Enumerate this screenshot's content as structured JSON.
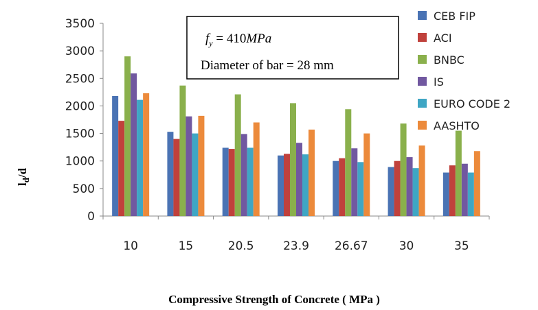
{
  "chart_data": {
    "type": "bar",
    "xlabel": "Compressive Strength of Concrete ( MPa )",
    "ylabel": "ld/d",
    "ylabel_main": "l",
    "ylabel_sub": "d",
    "ylabel_tail": "/d",
    "ylim": [
      0,
      3500
    ],
    "yticks": [
      0,
      500,
      1000,
      1500,
      2000,
      2500,
      3000,
      3500
    ],
    "grid": false,
    "legend_position": "right",
    "categories": [
      "10",
      "15",
      "20.5",
      "23.9",
      "26.67",
      "30",
      "35"
    ],
    "series": [
      {
        "name": "CEB FIP",
        "color": "#4a73b4",
        "values": [
          2180,
          1530,
          1240,
          1100,
          1000,
          890,
          790
        ]
      },
      {
        "name": "ACI",
        "color": "#c0413c",
        "values": [
          1730,
          1400,
          1220,
          1130,
          1050,
          1000,
          920
        ]
      },
      {
        "name": "BNBC",
        "color": "#8ab04c",
        "values": [
          2900,
          2370,
          2210,
          2050,
          1940,
          1680,
          1550
        ]
      },
      {
        "name": "IS",
        "color": "#7158a0",
        "values": [
          2590,
          1810,
          1490,
          1330,
          1230,
          1070,
          950
        ]
      },
      {
        "name": "EURO CODE 2",
        "color": "#3fa6c4",
        "values": [
          2110,
          1500,
          1240,
          1120,
          980,
          870,
          790
        ]
      },
      {
        "name": "AASHTO",
        "color": "#ec8a3b",
        "values": [
          2230,
          1820,
          1700,
          1570,
          1500,
          1280,
          1180
        ]
      }
    ],
    "annotation": {
      "fy_symbol": "f",
      "fy_sub": "y",
      "fy_value": " = 410",
      "fy_unit": "MPa",
      "diameter": "Diameter of bar = 28 mm"
    }
  }
}
